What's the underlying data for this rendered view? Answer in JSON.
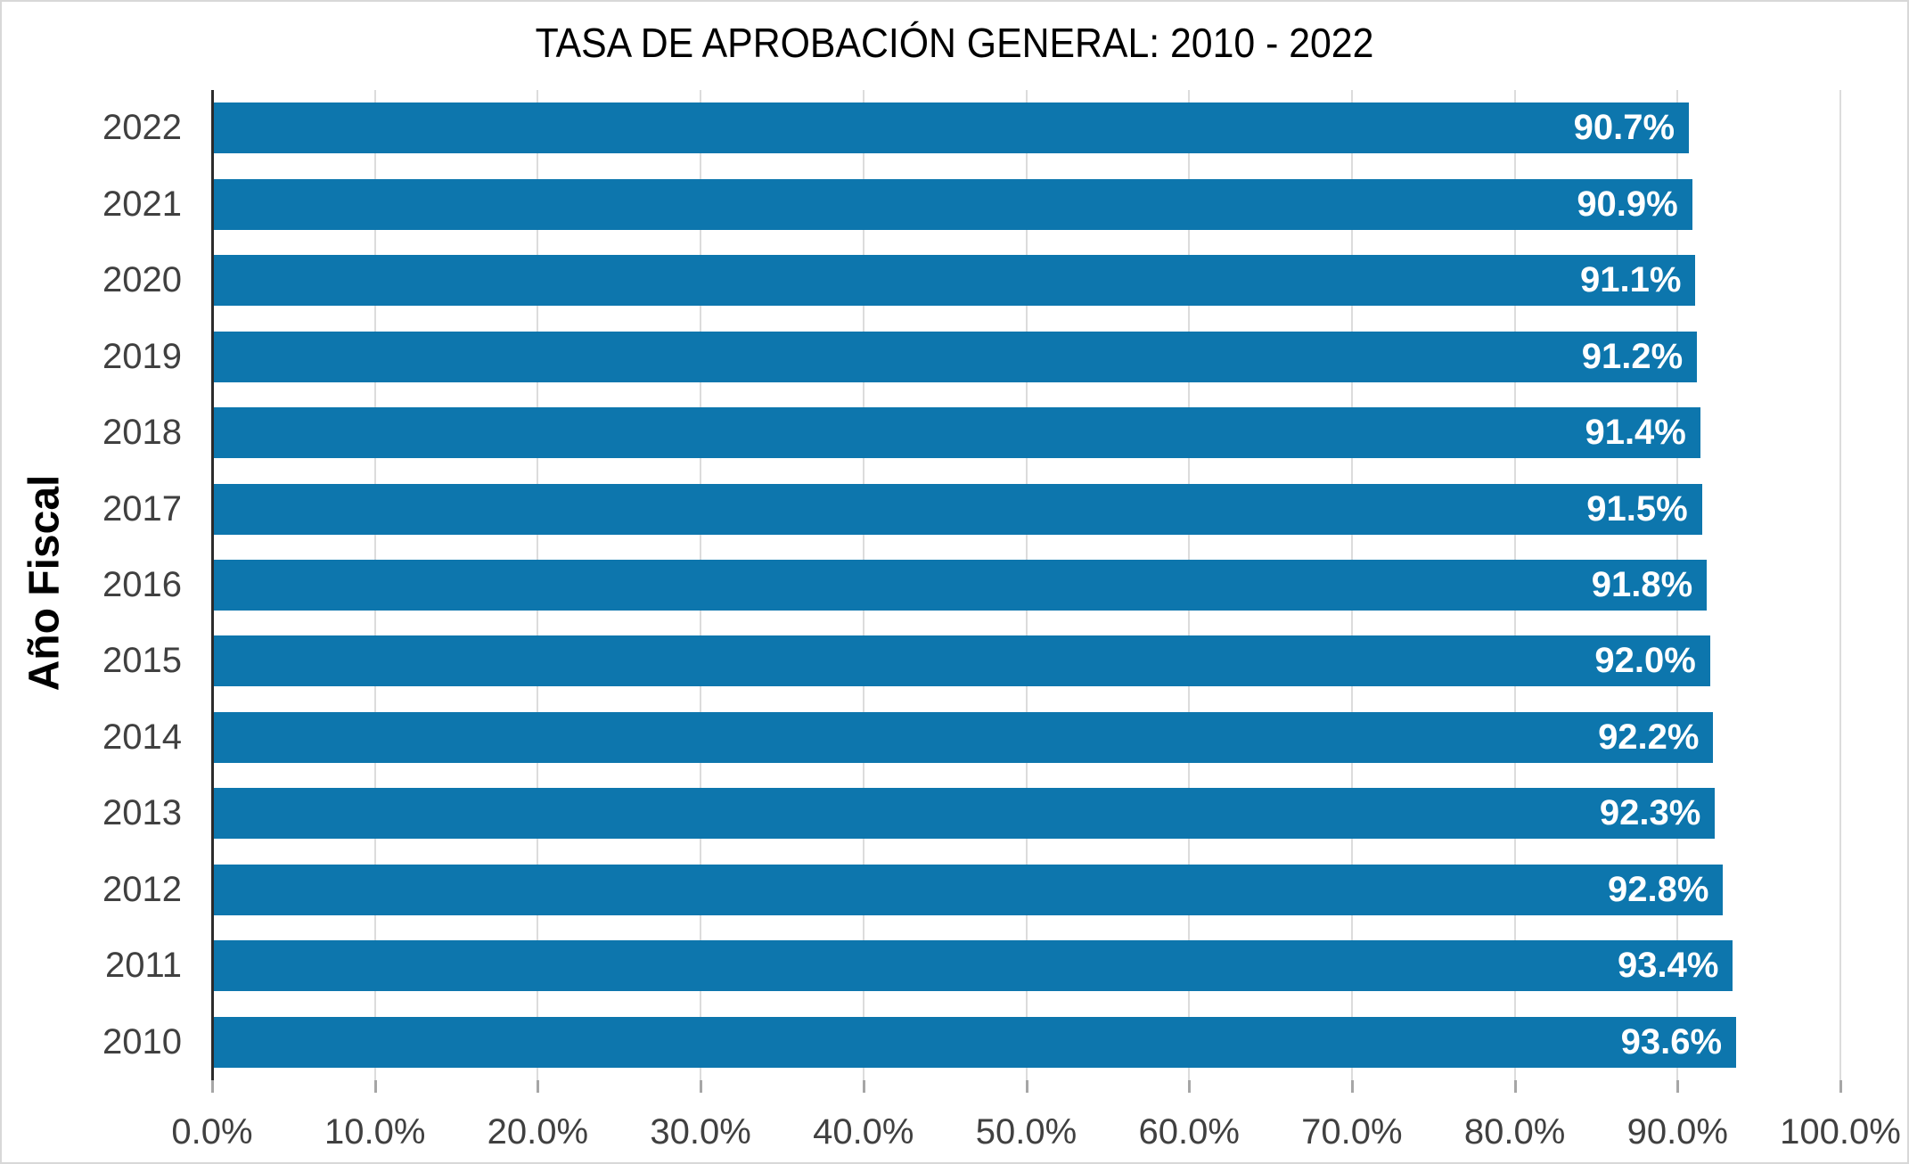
{
  "title": "TASA DE APROBACIÓN GENERAL: 2010 - 2022",
  "chart_data": {
    "type": "bar",
    "orientation": "horizontal",
    "title": "TASA DE APROBACIÓN GENERAL: 2010 - 2022",
    "ylabel": "Año Fiscal",
    "xlabel": "",
    "categories": [
      "2022",
      "2021",
      "2020",
      "2019",
      "2018",
      "2017",
      "2016",
      "2015",
      "2014",
      "2013",
      "2012",
      "2011",
      "2010"
    ],
    "values": [
      90.7,
      90.9,
      91.1,
      91.2,
      91.4,
      91.5,
      91.8,
      92.0,
      92.2,
      92.3,
      92.8,
      93.4,
      93.6
    ],
    "value_labels": [
      "90.7%",
      "90.9%",
      "91.1%",
      "91.2%",
      "91.4%",
      "91.5%",
      "91.8%",
      "92.0%",
      "92.2%",
      "92.3%",
      "92.8%",
      "93.4%",
      "93.6%"
    ],
    "x_ticks": [
      "0.0%",
      "10.0%",
      "20.0%",
      "30.0%",
      "40.0%",
      "50.0%",
      "60.0%",
      "70.0%",
      "80.0%",
      "90.0%",
      "100.0%"
    ],
    "xlim": [
      0,
      100
    ],
    "grid": true,
    "legend": false,
    "bar_color": "#0d76ad",
    "bar_label_color": "#ffffff",
    "axis_text_color": "#404040",
    "gridline_color": "#dcdcdc",
    "axis_line_color": "#2b2b2b",
    "tick_color": "#a6a6a6"
  }
}
